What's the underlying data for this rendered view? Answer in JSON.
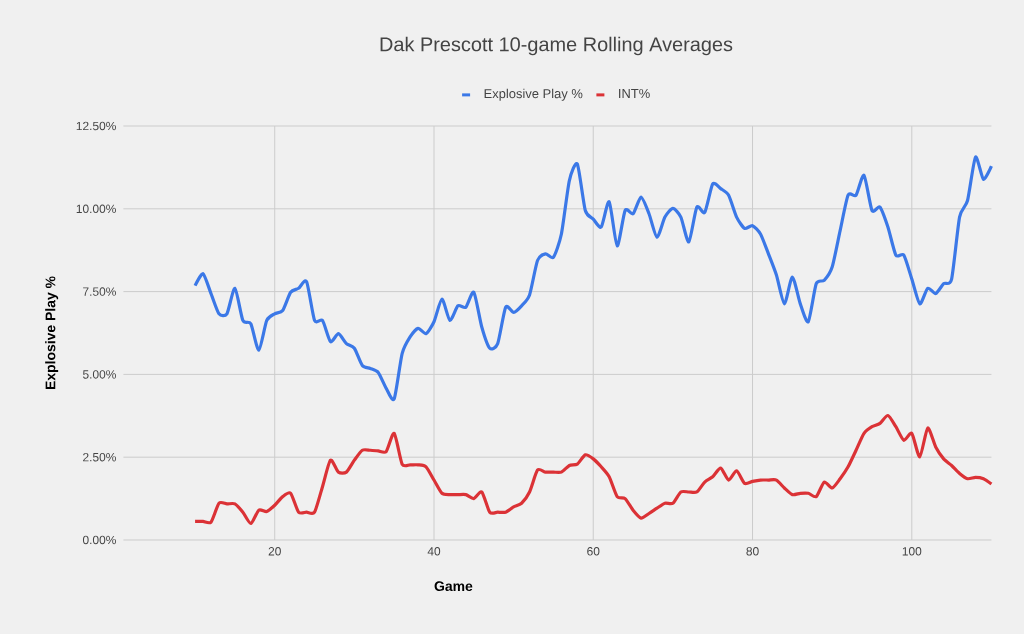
{
  "chart_data": {
    "type": "line",
    "title": "Dak Prescott 10-game Rolling Averages",
    "xlabel": "Game",
    "ylabel": "Explosive Play %",
    "xlim": [
      1,
      110
    ],
    "xticks": [
      20,
      40,
      60,
      80,
      100
    ],
    "ylim": [
      0,
      12.5
    ],
    "yticks": [
      {
        "value": 0,
        "label": "0.00%"
      },
      {
        "value": 2.5,
        "label": "2.50%"
      },
      {
        "value": 5,
        "label": "5.00%"
      },
      {
        "value": 7.5,
        "label": "7.50%"
      },
      {
        "value": 10,
        "label": "10.00%"
      },
      {
        "value": 12.5,
        "label": "12.50%"
      }
    ],
    "grid": true,
    "legend": "top",
    "marker": "none",
    "line_style": "solid",
    "x": [
      10,
      11,
      12,
      13,
      14,
      15,
      16,
      17,
      18,
      19,
      20,
      21,
      22,
      23,
      24,
      25,
      26,
      27,
      28,
      29,
      30,
      31,
      32,
      33,
      34,
      35,
      36,
      37,
      38,
      39,
      40,
      41,
      42,
      43,
      44,
      45,
      46,
      47,
      48,
      49,
      50,
      51,
      52,
      53,
      54,
      55,
      56,
      57,
      58,
      59,
      60,
      61,
      62,
      63,
      64,
      65,
      66,
      67,
      68,
      69,
      70,
      71,
      72,
      73,
      74,
      75,
      76,
      77,
      78,
      79,
      80,
      81,
      82,
      83,
      84,
      85,
      86,
      87,
      88,
      89,
      90,
      91,
      92,
      93,
      94,
      95,
      96,
      97,
      98,
      99,
      100,
      101,
      102,
      103,
      104,
      105,
      106,
      107,
      108,
      109,
      110
    ],
    "series": [
      {
        "name": "Explosive Play %",
        "color": "#3b78e7",
        "values": [
          7.68,
          8.04,
          7.44,
          6.83,
          6.83,
          7.6,
          6.63,
          6.53,
          5.73,
          6.63,
          6.83,
          6.93,
          7.48,
          7.6,
          7.8,
          6.63,
          6.63,
          5.99,
          6.23,
          5.93,
          5.79,
          5.27,
          5.18,
          5.06,
          4.58,
          4.26,
          5.63,
          6.13,
          6.39,
          6.23,
          6.59,
          7.27,
          6.63,
          7.07,
          7.03,
          7.48,
          6.43,
          5.79,
          5.93,
          7.03,
          6.87,
          7.07,
          7.4,
          8.44,
          8.64,
          8.54,
          9.24,
          10.85,
          11.35,
          9.95,
          9.69,
          9.45,
          10.21,
          8.88,
          9.95,
          9.85,
          10.35,
          9.85,
          9.14,
          9.75,
          10.01,
          9.75,
          9.0,
          10.05,
          9.89,
          10.75,
          10.61,
          10.41,
          9.75,
          9.41,
          9.49,
          9.24,
          8.64,
          8.0,
          7.13,
          7.94,
          7.13,
          6.59,
          7.74,
          7.84,
          8.24,
          9.34,
          10.41,
          10.41,
          11.01,
          9.95,
          10.05,
          9.45,
          8.6,
          8.6,
          7.88,
          7.13,
          7.6,
          7.44,
          7.74,
          7.88,
          9.75,
          10.25,
          11.56,
          10.89,
          11.29
        ]
      },
      {
        "name": "INT%",
        "color": "#db3236",
        "values": [
          0.56,
          0.56,
          0.54,
          1.11,
          1.09,
          1.09,
          0.84,
          0.5,
          0.9,
          0.86,
          1.05,
          1.31,
          1.41,
          0.84,
          0.84,
          0.84,
          1.61,
          2.41,
          2.05,
          2.05,
          2.41,
          2.71,
          2.71,
          2.69,
          2.67,
          3.22,
          2.29,
          2.27,
          2.27,
          2.21,
          1.81,
          1.41,
          1.37,
          1.37,
          1.37,
          1.25,
          1.45,
          0.84,
          0.84,
          0.84,
          1.0,
          1.11,
          1.45,
          2.11,
          2.05,
          2.05,
          2.05,
          2.25,
          2.29,
          2.57,
          2.45,
          2.21,
          1.91,
          1.31,
          1.25,
          0.9,
          0.66,
          0.8,
          0.96,
          1.11,
          1.11,
          1.45,
          1.45,
          1.45,
          1.75,
          1.91,
          2.17,
          1.81,
          2.09,
          1.71,
          1.77,
          1.81,
          1.81,
          1.81,
          1.57,
          1.37,
          1.41,
          1.41,
          1.31,
          1.75,
          1.57,
          1.85,
          2.21,
          2.71,
          3.22,
          3.42,
          3.52,
          3.76,
          3.42,
          3.01,
          3.22,
          2.51,
          3.38,
          2.81,
          2.45,
          2.25,
          2.01,
          1.85,
          1.89,
          1.85,
          1.69
        ]
      }
    ]
  }
}
